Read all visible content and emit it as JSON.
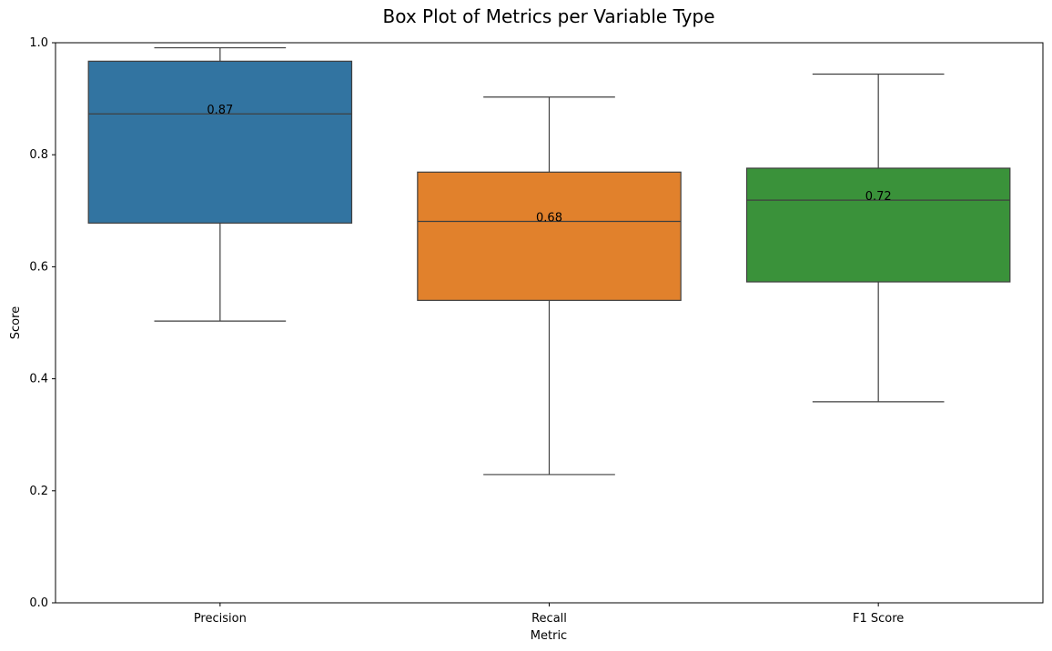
{
  "chart_data": {
    "type": "box",
    "title": "Box Plot of Metrics per Variable Type",
    "xlabel": "Metric",
    "ylabel": "Score",
    "ylim": [
      0.0,
      1.0
    ],
    "yticks": [
      0.0,
      0.2,
      0.4,
      0.6,
      0.8,
      1.0
    ],
    "ytick_labels": [
      "0.0",
      "0.2",
      "0.4",
      "0.6",
      "0.8",
      "1.0"
    ],
    "grid": false,
    "series": [
      {
        "name": "Precision",
        "whisker_low": 0.503,
        "q1": 0.678,
        "median": 0.873,
        "q3": 0.967,
        "whisker_high": 0.991,
        "median_label": "0.87",
        "color": "#3274a1"
      },
      {
        "name": "Recall",
        "whisker_low": 0.229,
        "q1": 0.54,
        "median": 0.681,
        "q3": 0.769,
        "whisker_high": 0.903,
        "median_label": "0.68",
        "color": "#e1812c"
      },
      {
        "name": "F1 Score",
        "whisker_low": 0.359,
        "q1": 0.573,
        "median": 0.719,
        "q3": 0.776,
        "whisker_high": 0.944,
        "median_label": "0.72",
        "color": "#3a923a"
      }
    ]
  }
}
